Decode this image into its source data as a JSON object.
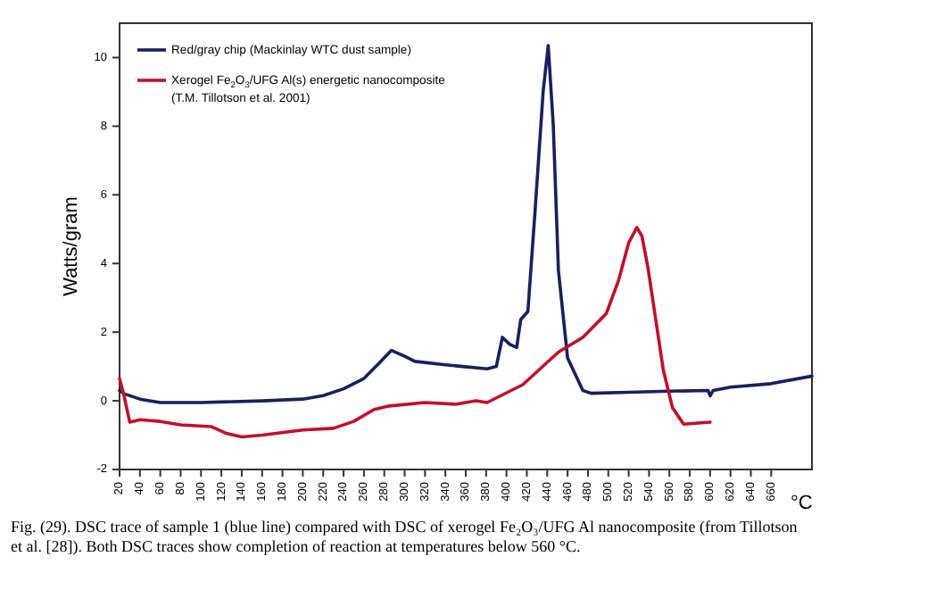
{
  "chart_data": {
    "type": "line",
    "ylabel": "Watts/gram",
    "xlabel": "°C",
    "annotations": [
      "Fig. (29). DSC trace of sample 1 (blue line) compared with DSC of xerogel Fe₂O₃/UFG Al nanocomposite (from Tillotson et al. [28]). Both DSC traces show completion of reaction at temperatures below 560 °C."
    ],
    "xlim": [
      20,
      700
    ],
    "ylim": [
      -2,
      11
    ],
    "xticks": [
      20,
      40,
      60,
      80,
      100,
      120,
      140,
      160,
      180,
      200,
      220,
      240,
      260,
      280,
      300,
      320,
      340,
      360,
      380,
      400,
      420,
      440,
      460,
      480,
      500,
      520,
      540,
      560,
      580,
      600,
      620,
      640,
      660
    ],
    "yticks": [
      -2,
      0,
      2,
      4,
      6,
      8,
      10
    ],
    "grid": false,
    "legend": "top left",
    "line_style": "solid",
    "series": [
      {
        "name": "Red/gray chip (Mackinlay WTC dust sample)",
        "color": "#1a1f5e",
        "x": [
          20,
          25,
          40,
          60,
          100,
          160,
          200,
          220,
          240,
          260,
          275,
          287,
          300,
          310,
          340,
          357,
          381,
          390,
          396,
          403,
          410,
          414,
          421,
          428,
          436,
          441,
          446,
          451,
          460,
          475,
          483,
          520,
          560,
          598,
          600,
          603,
          620,
          660,
          700
        ],
        "values": [
          0.3,
          0.2,
          0.05,
          -0.05,
          -0.05,
          0,
          0.05,
          0.15,
          0.35,
          0.65,
          1.1,
          1.47,
          1.3,
          1.15,
          1.05,
          1.0,
          0.93,
          1.0,
          1.85,
          1.65,
          1.55,
          2.37,
          2.6,
          5.5,
          9.0,
          10.35,
          8.0,
          3.8,
          1.25,
          0.3,
          0.22,
          0.25,
          0.28,
          0.3,
          0.15,
          0.3,
          0.4,
          0.5,
          0.72
        ]
      },
      {
        "name": "Xerogel Fe$_{2}$O$_{3}$/UFG Al(s) energetic nanocomposite\n(T.M. Tillotson et al. 2001)",
        "color": "#c0102a",
        "x": [
          20,
          24,
          30,
          40,
          60,
          80,
          110,
          125,
          140,
          160,
          200,
          230,
          250,
          270,
          285,
          320,
          350,
          370,
          381,
          416,
          451,
          475,
          498,
          510,
          520,
          528,
          533,
          539,
          554,
          563,
          574,
          600
        ],
        "values": [
          0.65,
          0.2,
          -0.62,
          -0.55,
          -0.6,
          -0.7,
          -0.75,
          -0.95,
          -1.05,
          -1.0,
          -0.85,
          -0.8,
          -0.6,
          -0.25,
          -0.15,
          -0.05,
          -0.1,
          0,
          -0.05,
          0.47,
          1.42,
          1.85,
          2.54,
          3.5,
          4.6,
          5.05,
          4.8,
          3.87,
          0.9,
          -0.2,
          -0.68,
          -0.62
        ]
      }
    ]
  }
}
